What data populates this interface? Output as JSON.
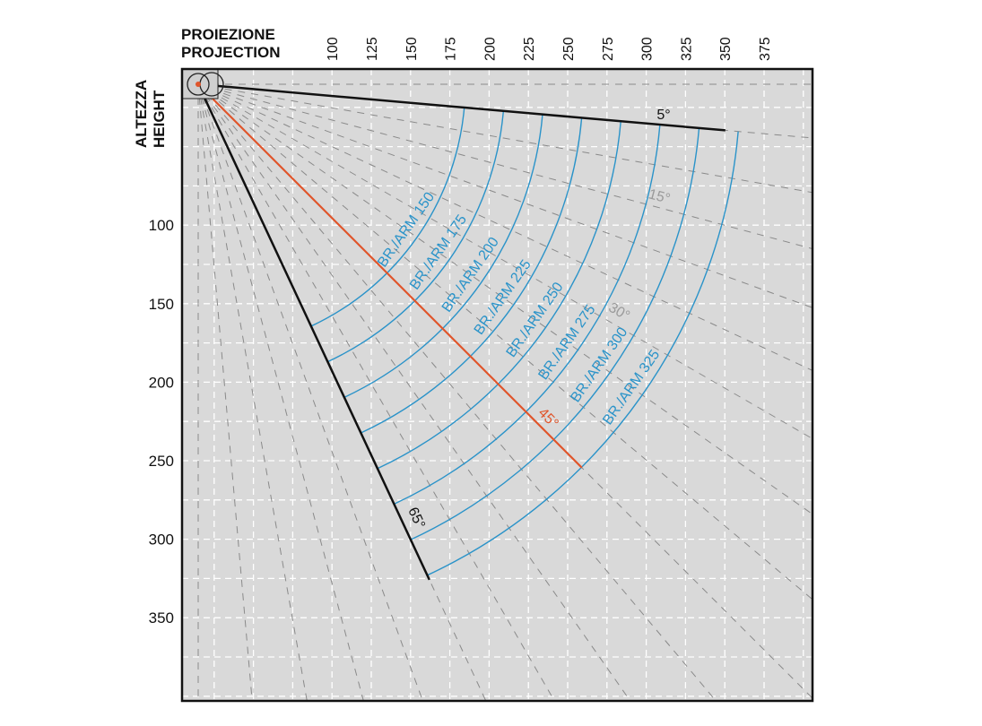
{
  "header": {
    "projection_it": "PROIEZIONE",
    "projection_en": "PROJECTION",
    "height_it": "ALTEZZA",
    "height_en": "HEIGHT"
  },
  "chart_data": {
    "type": "diagram",
    "x_ticks": [
      "100",
      "125",
      "150",
      "175",
      "200",
      "225",
      "250",
      "275",
      "300",
      "325",
      "350",
      "375"
    ],
    "y_ticks": [
      "100",
      "150",
      "200",
      "250",
      "300",
      "350"
    ],
    "arms": [
      {
        "label": "BR./ARM 150",
        "value": 150
      },
      {
        "label": "BR./ARM 175",
        "value": 175
      },
      {
        "label": "BR./ARM 200",
        "value": 200
      },
      {
        "label": "BR./ARM 225",
        "value": 225
      },
      {
        "label": "BR./ARM 250",
        "value": 250
      },
      {
        "label": "BR./ARM 275",
        "value": 275
      },
      {
        "label": "BR./ARM 300",
        "value": 300
      },
      {
        "label": "BR./ARM 325",
        "value": 325
      }
    ],
    "angles": [
      {
        "label": "5°",
        "value": 5,
        "color": "#111111"
      },
      {
        "label": "15°",
        "value": 15,
        "color": "#9a9a9a"
      },
      {
        "label": "30°",
        "value": 30,
        "color": "#9a9a9a"
      },
      {
        "label": "45°",
        "value": 45,
        "color": "#e0552b"
      },
      {
        "label": "65°",
        "value": 65,
        "color": "#111111"
      }
    ],
    "colors": {
      "arc": "#2a93c9",
      "background": "#d9d9d9",
      "aim": "#e0552b"
    }
  }
}
